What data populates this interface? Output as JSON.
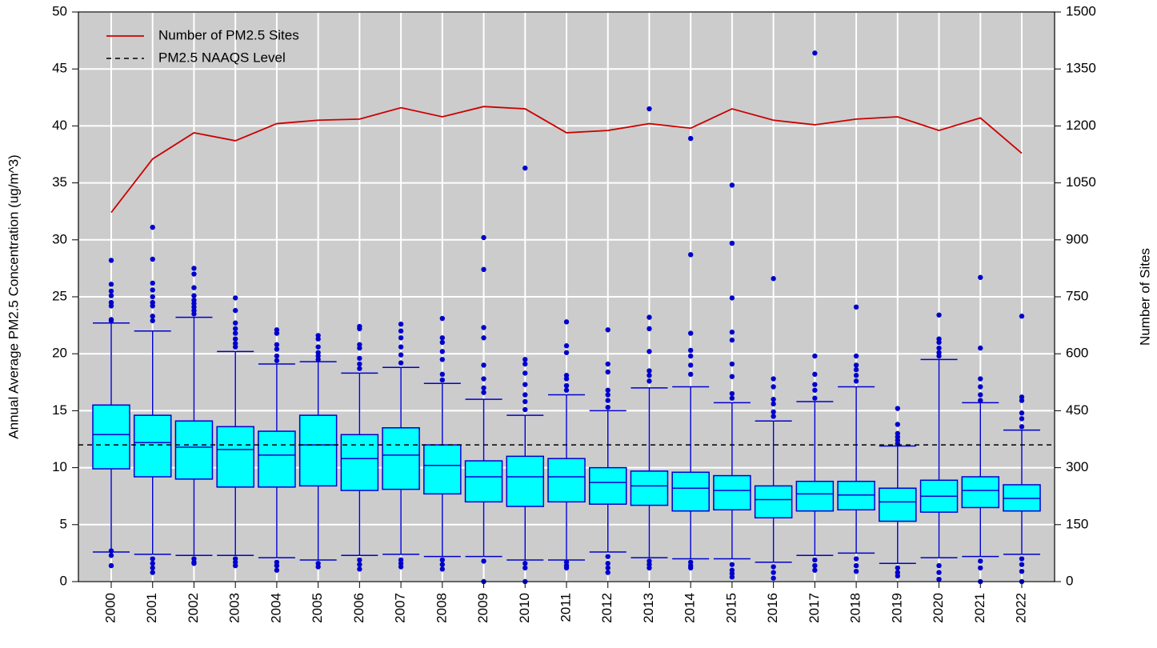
{
  "chart_data": {
    "type": "boxplot",
    "y_label": "Annual Average PM2.5 Concentration (ug/m^3)",
    "y2_label": "Number of Sites",
    "categories": [
      "2000",
      "2001",
      "2002",
      "2003",
      "2004",
      "2005",
      "2006",
      "2007",
      "2008",
      "2009",
      "2010",
      "2011",
      "2012",
      "2013",
      "2014",
      "2015",
      "2016",
      "2017",
      "2018",
      "2019",
      "2020",
      "2021",
      "2022"
    ],
    "box_color": "#00ffff",
    "box_edge_color": "#0000cd",
    "background": "#cccccc",
    "grid": true,
    "ylim": [
      0,
      50
    ],
    "yticks": [
      0,
      5,
      10,
      15,
      20,
      25,
      30,
      35,
      40,
      45,
      50
    ],
    "y2lim": [
      0,
      1500
    ],
    "y2ticks": [
      0,
      150,
      300,
      450,
      600,
      750,
      900,
      1050,
      1200,
      1350,
      1500
    ],
    "boxes": [
      {
        "low": 2.6,
        "q1": 9.9,
        "median": 12.9,
        "q3": 15.5,
        "high": 22.7,
        "outliers": [
          28.2,
          26.1,
          25.5,
          25.1,
          24.5,
          24.2,
          23.0,
          22.9,
          2.7,
          2.3,
          1.4
        ]
      },
      {
        "low": 2.4,
        "q1": 9.2,
        "median": 12.2,
        "q3": 14.6,
        "high": 22.0,
        "outliers": [
          31.1,
          28.3,
          26.2,
          25.6,
          25.0,
          24.5,
          24.2,
          23.3,
          22.9,
          2.0,
          1.6,
          1.2,
          0.8
        ]
      },
      {
        "low": 2.3,
        "q1": 9.0,
        "median": 11.8,
        "q3": 14.1,
        "high": 23.2,
        "outliers": [
          27.5,
          27.0,
          25.8,
          25.1,
          24.7,
          24.4,
          24.1,
          23.8,
          23.5,
          2.0,
          1.7,
          1.6
        ]
      },
      {
        "low": 2.3,
        "q1": 8.3,
        "median": 11.6,
        "q3": 13.6,
        "high": 20.2,
        "outliers": [
          24.9,
          23.8,
          22.7,
          22.2,
          21.8,
          21.3,
          20.9,
          20.6,
          2.0,
          1.7,
          1.4
        ]
      },
      {
        "low": 2.1,
        "q1": 8.3,
        "median": 11.1,
        "q3": 13.2,
        "high": 19.1,
        "outliers": [
          22.1,
          21.8,
          20.8,
          20.4,
          19.8,
          19.4,
          1.7,
          1.4,
          1.0
        ]
      },
      {
        "low": 1.9,
        "q1": 8.4,
        "median": 12.0,
        "q3": 14.6,
        "high": 19.3,
        "outliers": [
          21.6,
          21.3,
          20.6,
          20.1,
          19.8,
          19.5,
          1.6,
          1.3
        ]
      },
      {
        "low": 2.3,
        "q1": 8.0,
        "median": 10.8,
        "q3": 12.9,
        "high": 18.3,
        "outliers": [
          22.4,
          22.2,
          20.8,
          20.5,
          19.6,
          19.1,
          18.7,
          1.9,
          1.5,
          1.1
        ]
      },
      {
        "low": 2.4,
        "q1": 8.1,
        "median": 11.1,
        "q3": 13.5,
        "high": 18.8,
        "outliers": [
          22.6,
          22.0,
          21.4,
          20.6,
          19.9,
          19.2,
          1.9,
          1.6,
          1.3
        ]
      },
      {
        "low": 2.2,
        "q1": 7.7,
        "median": 10.2,
        "q3": 12.0,
        "high": 17.4,
        "outliers": [
          23.1,
          21.4,
          21.0,
          20.2,
          19.5,
          18.2,
          17.7,
          1.9,
          1.5,
          1.1
        ]
      },
      {
        "low": 2.2,
        "q1": 7.0,
        "median": 9.2,
        "q3": 10.6,
        "high": 16.0,
        "outliers": [
          30.2,
          27.4,
          22.3,
          21.4,
          19.0,
          17.8,
          17.0,
          16.6,
          1.8,
          0.0
        ]
      },
      {
        "low": 1.9,
        "q1": 6.6,
        "median": 9.2,
        "q3": 11.0,
        "high": 14.6,
        "outliers": [
          36.3,
          19.5,
          19.1,
          18.3,
          17.3,
          16.4,
          15.8,
          15.1,
          1.6,
          1.2,
          0.0
        ]
      },
      {
        "low": 1.9,
        "q1": 7.0,
        "median": 9.2,
        "q3": 10.8,
        "high": 16.4,
        "outliers": [
          22.8,
          20.7,
          20.1,
          18.1,
          17.8,
          17.2,
          16.8,
          1.7,
          1.4,
          1.2
        ]
      },
      {
        "low": 2.6,
        "q1": 6.8,
        "median": 8.7,
        "q3": 10.0,
        "high": 15.0,
        "outliers": [
          22.1,
          19.1,
          18.4,
          16.8,
          16.4,
          15.9,
          15.3,
          2.2,
          1.6,
          1.2,
          0.8
        ]
      },
      {
        "low": 2.1,
        "q1": 6.7,
        "median": 8.4,
        "q3": 9.7,
        "high": 17.0,
        "outliers": [
          41.5,
          23.2,
          22.2,
          20.2,
          18.5,
          18.1,
          17.6,
          1.8,
          1.5,
          1.2
        ]
      },
      {
        "low": 2.0,
        "q1": 6.2,
        "median": 8.2,
        "q3": 9.6,
        "high": 17.1,
        "outliers": [
          38.9,
          28.7,
          21.8,
          20.3,
          19.8,
          19.0,
          18.2,
          1.7,
          1.4,
          1.2
        ]
      },
      {
        "low": 2.0,
        "q1": 6.3,
        "median": 8.0,
        "q3": 9.3,
        "high": 15.7,
        "outliers": [
          34.8,
          29.7,
          24.9,
          21.9,
          21.2,
          19.1,
          18.0,
          16.5,
          16.1,
          1.5,
          1.0,
          0.7,
          0.4
        ]
      },
      {
        "low": 1.7,
        "q1": 5.6,
        "median": 7.2,
        "q3": 8.4,
        "high": 14.1,
        "outliers": [
          26.6,
          17.8,
          17.1,
          16.0,
          15.6,
          14.9,
          14.5,
          1.3,
          0.8,
          0.3
        ]
      },
      {
        "low": 2.3,
        "q1": 6.2,
        "median": 7.7,
        "q3": 8.8,
        "high": 15.8,
        "outliers": [
          46.4,
          19.8,
          18.2,
          17.3,
          16.8,
          16.1,
          1.9,
          1.4,
          1.0
        ]
      },
      {
        "low": 2.5,
        "q1": 6.3,
        "median": 7.6,
        "q3": 8.8,
        "high": 17.1,
        "outliers": [
          24.1,
          19.8,
          19.0,
          18.6,
          18.1,
          17.6,
          2.0,
          1.4,
          0.9
        ]
      },
      {
        "low": 1.6,
        "q1": 5.3,
        "median": 7.0,
        "q3": 8.2,
        "high": 11.9,
        "outliers": [
          15.2,
          13.8,
          13.0,
          12.7,
          12.4,
          12.1,
          1.2,
          0.8,
          0.5
        ]
      },
      {
        "low": 2.1,
        "q1": 6.1,
        "median": 7.5,
        "q3": 8.9,
        "high": 19.5,
        "outliers": [
          23.4,
          21.3,
          21.0,
          20.5,
          20.1,
          19.8,
          1.4,
          0.8,
          0.2
        ]
      },
      {
        "low": 2.2,
        "q1": 6.5,
        "median": 8.0,
        "q3": 9.2,
        "high": 15.7,
        "outliers": [
          26.7,
          20.5,
          17.8,
          17.1,
          16.4,
          15.9,
          1.8,
          1.2,
          0.0
        ]
      },
      {
        "low": 2.4,
        "q1": 6.2,
        "median": 7.3,
        "q3": 8.5,
        "high": 13.3,
        "outliers": [
          23.3,
          16.2,
          15.9,
          14.8,
          14.3,
          13.6,
          2.0,
          1.5,
          0.9,
          0.0
        ]
      }
    ],
    "line": {
      "name": "Number of PM2.5 Sites",
      "color": "#cc0000",
      "axis": "y2",
      "values": [
        972,
        1113,
        1182,
        1161,
        1206,
        1215,
        1218,
        1248,
        1224,
        1251,
        1245,
        1182,
        1188,
        1206,
        1194,
        1245,
        1215,
        1203,
        1218,
        1224,
        1188,
        1221,
        1128
      ]
    },
    "reference_line": {
      "name": "PM2.5 NAAQS Level",
      "value": 12,
      "color": "#000000"
    }
  }
}
